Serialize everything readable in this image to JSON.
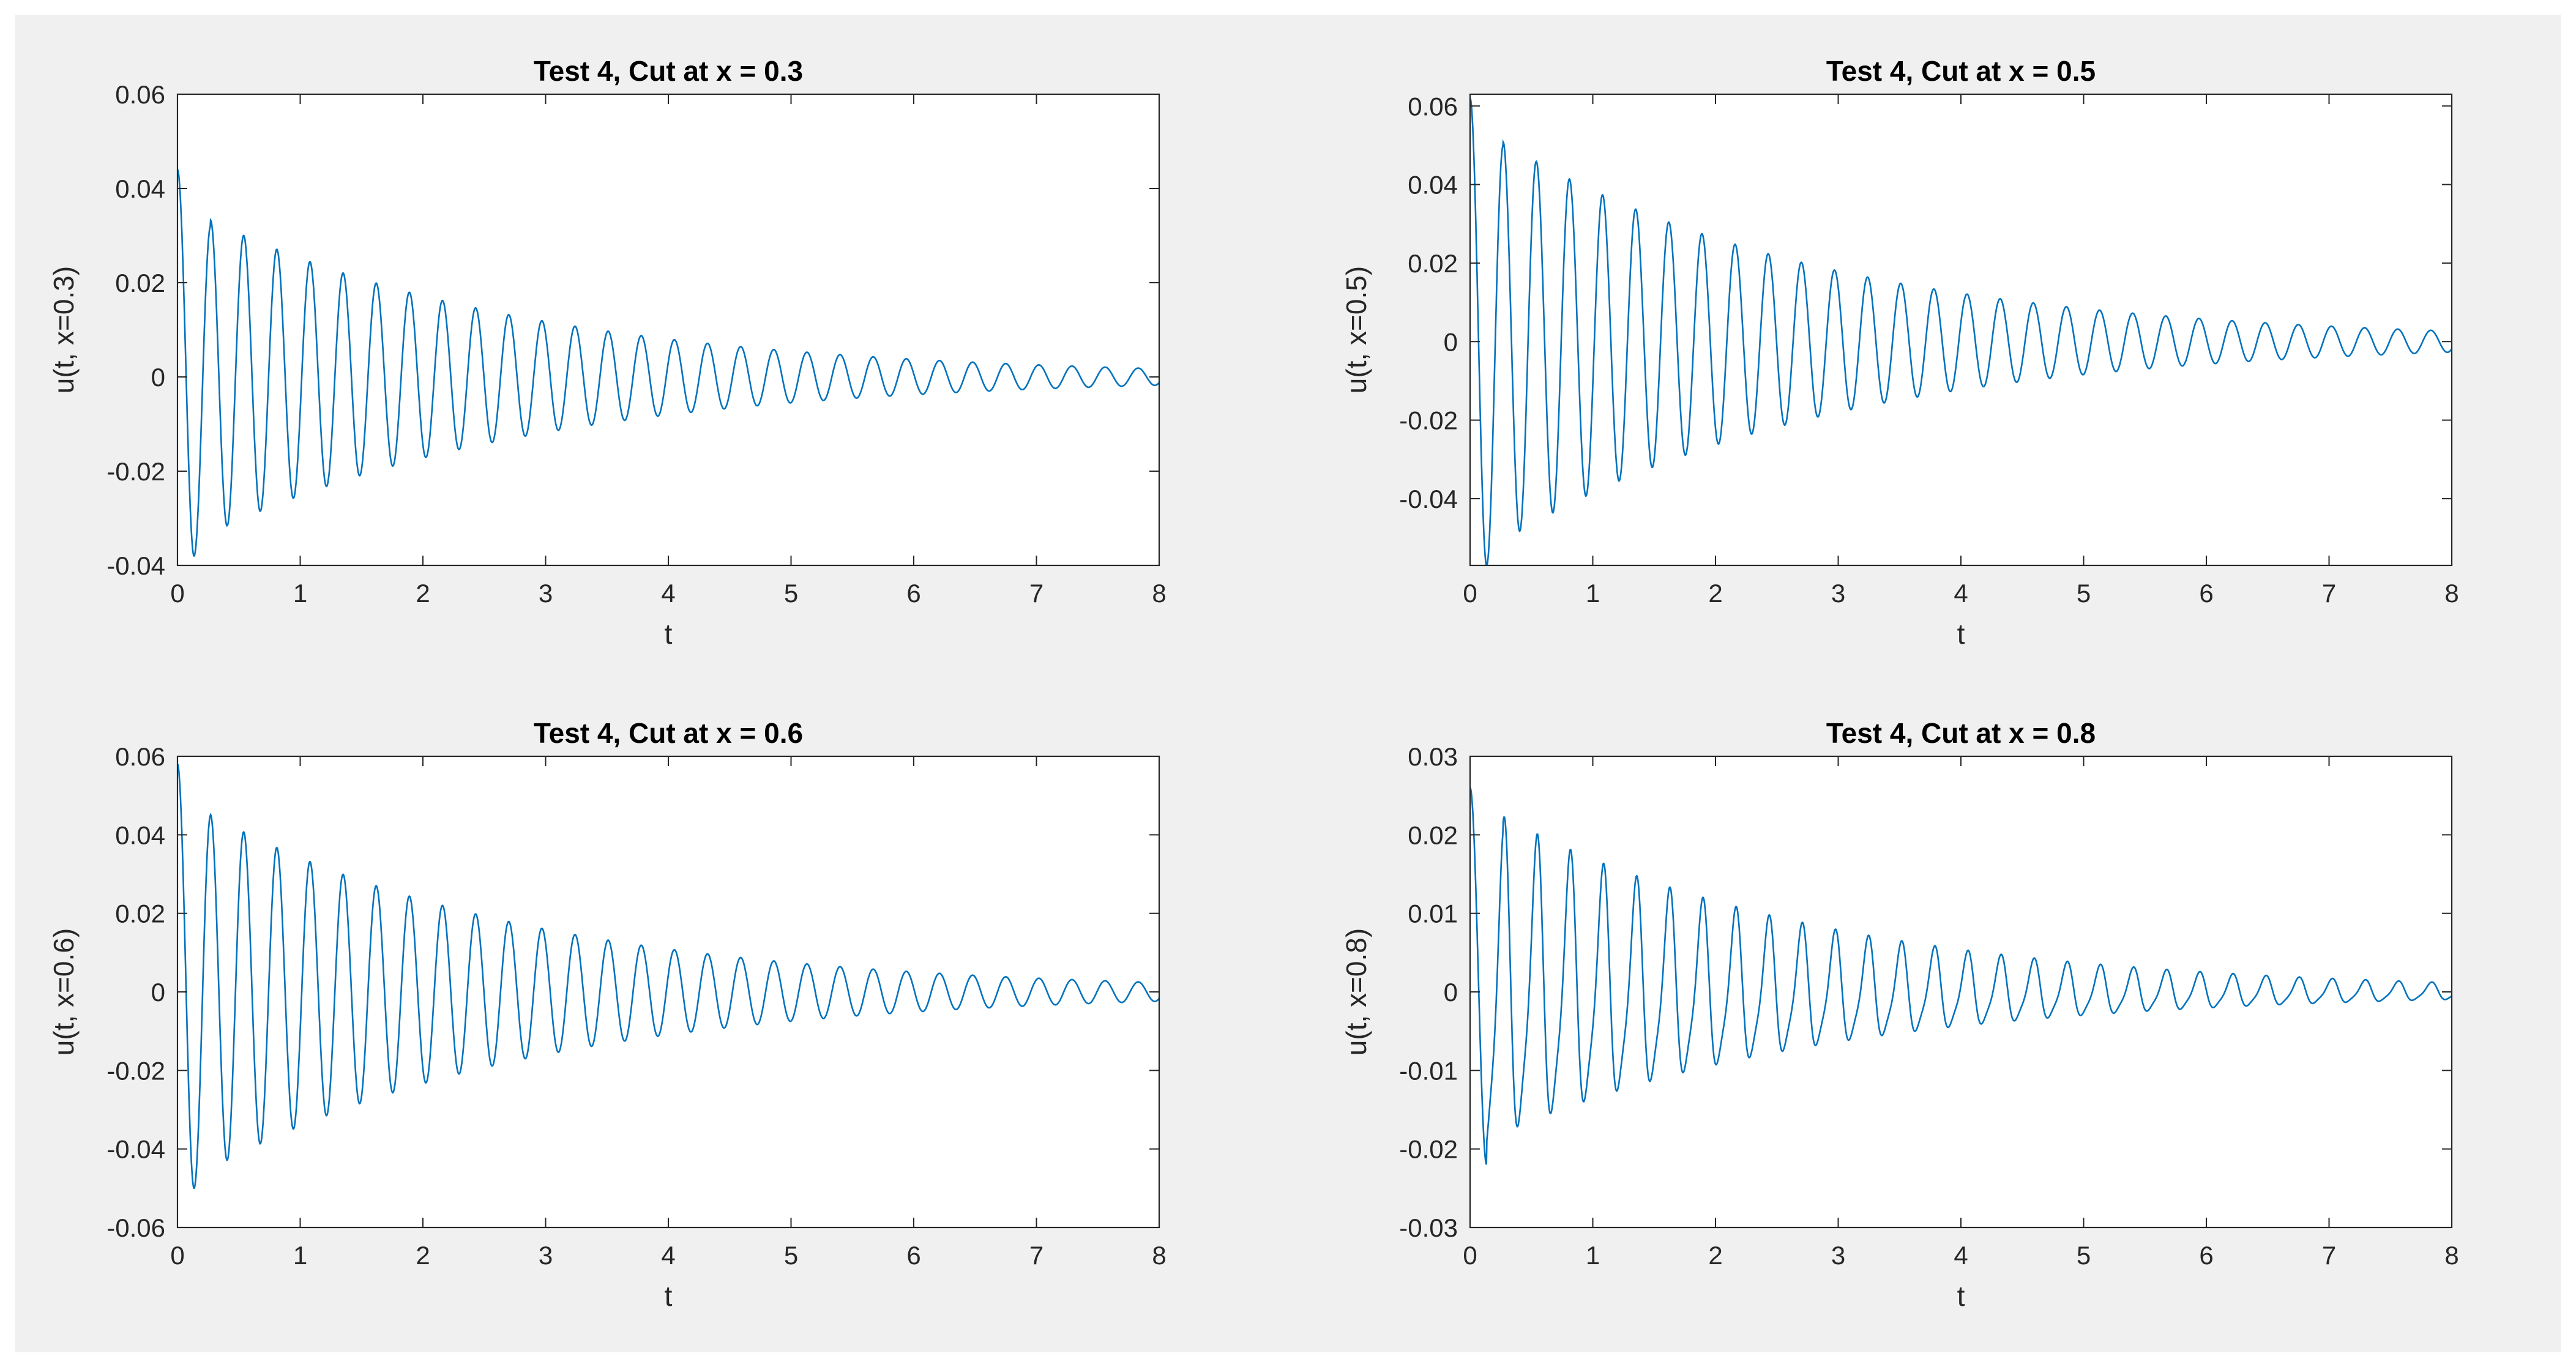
{
  "chart_data": [
    {
      "type": "line",
      "title": "Test 4, Cut at x = 0.3",
      "xlabel": "t",
      "ylabel": "u(t, x=0.3)",
      "xlim": [
        0,
        8
      ],
      "ylim": [
        -0.04,
        0.06
      ],
      "xticks": [
        0,
        1,
        2,
        3,
        4,
        5,
        6,
        7,
        8
      ],
      "yticks": [
        -0.04,
        -0.02,
        0,
        0.02,
        0.04,
        0.06
      ],
      "ytick_labels": [
        "-0.04",
        "-0.02",
        "0",
        "0.02",
        "0.04",
        "0.06"
      ],
      "signal": {
        "start_value": 0.044,
        "first_trough": -0.038,
        "first_peak": 0.032,
        "period": 0.27,
        "decay_rate": 0.38,
        "t_end": 8
      },
      "series": [
        {
          "color": "#0072bd"
        }
      ]
    },
    {
      "type": "line",
      "title": "Test 4, Cut at x = 0.5",
      "xlabel": "t",
      "ylabel": "u(t, x=0.5)",
      "xlim": [
        0,
        8
      ],
      "ylim": [
        -0.057,
        0.063
      ],
      "xticks": [
        0,
        1,
        2,
        3,
        4,
        5,
        6,
        7,
        8
      ],
      "yticks": [
        -0.04,
        -0.02,
        0,
        0.02,
        0.04,
        0.06
      ],
      "ytick_labels": [
        "-0.04",
        "-0.02",
        "0",
        "0.02",
        "0.04",
        "0.06"
      ],
      "signal": {
        "start_value": 0.062,
        "first_trough": -0.057,
        "first_peak": 0.05,
        "period": 0.27,
        "decay_rate": 0.38,
        "t_end": 8
      },
      "series": [
        {
          "color": "#0072bd"
        }
      ]
    },
    {
      "type": "line",
      "title": "Test 4, Cut at x = 0.6",
      "xlabel": "t",
      "ylabel": "u(t, x=0.6)",
      "xlim": [
        0,
        8
      ],
      "ylim": [
        -0.06,
        0.06
      ],
      "xticks": [
        0,
        1,
        2,
        3,
        4,
        5,
        6,
        7,
        8
      ],
      "yticks": [
        -0.06,
        -0.04,
        -0.02,
        0,
        0.02,
        0.04,
        0.06
      ],
      "ytick_labels": [
        "-0.06",
        "-0.04",
        "-0.02",
        "0",
        "0.02",
        "0.04",
        "0.06"
      ],
      "signal": {
        "start_value": 0.058,
        "first_trough": -0.05,
        "first_peak": 0.045,
        "period": 0.27,
        "decay_rate": 0.38,
        "t_end": 8
      },
      "series": [
        {
          "color": "#0072bd"
        }
      ]
    },
    {
      "type": "line",
      "title": "Test 4, Cut at x = 0.8",
      "xlabel": "t",
      "ylabel": "u(t, x=0.8)",
      "xlim": [
        0,
        8
      ],
      "ylim": [
        -0.03,
        0.03
      ],
      "xticks": [
        0,
        1,
        2,
        3,
        4,
        5,
        6,
        7,
        8
      ],
      "yticks": [
        -0.03,
        -0.02,
        -0.01,
        0,
        0.01,
        0.02,
        0.03
      ],
      "ytick_labels": [
        "-0.03",
        "-0.02",
        "-0.01",
        "0",
        "0.01",
        "0.02",
        "0.03"
      ],
      "signal": {
        "start_value": 0.026,
        "first_trough": -0.022,
        "first_peak": 0.018,
        "period": 0.27,
        "decay_rate": 0.38,
        "t_end": 8,
        "harmonic": 0.22
      },
      "series": [
        {
          "color": "#0072bd"
        }
      ]
    }
  ]
}
